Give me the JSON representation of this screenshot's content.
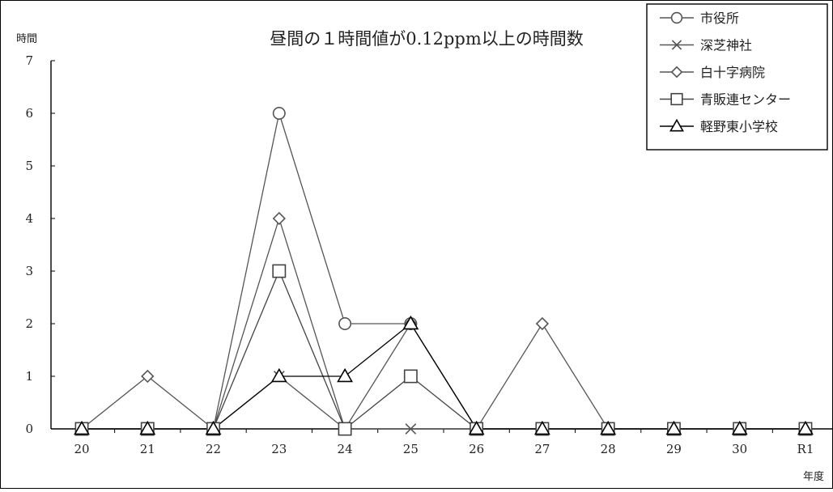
{
  "chart_data": {
    "type": "line",
    "title": "昼間の１時間値が0.12ppm以上の時間数",
    "ylabel": "時間",
    "xlabel": "年度",
    "categories": [
      "20",
      "21",
      "22",
      "23",
      "24",
      "25",
      "26",
      "27",
      "28",
      "29",
      "30",
      "R1"
    ],
    "ylim": [
      0,
      7
    ],
    "yticks": [
      "0",
      "1",
      "2",
      "3",
      "4",
      "5",
      "6",
      "7"
    ],
    "grid": false,
    "legend_position": "top-right",
    "series": [
      {
        "name": "市役所",
        "marker": "circle",
        "color": "#555555",
        "values": [
          0,
          0,
          0,
          6,
          2,
          2,
          0,
          0,
          0,
          0,
          0,
          0
        ]
      },
      {
        "name": "深芝神社",
        "marker": "x",
        "color": "#555555",
        "values": [
          0,
          0,
          0,
          1,
          0,
          0,
          0,
          0,
          0,
          0,
          0,
          0
        ]
      },
      {
        "name": "白十字病院",
        "marker": "diamond",
        "color": "#555555",
        "values": [
          0,
          1,
          0,
          4,
          0,
          2,
          0,
          2,
          0,
          0,
          0,
          0
        ]
      },
      {
        "name": "青販連センター",
        "marker": "square",
        "color": "#444444",
        "values": [
          0,
          0,
          0,
          3,
          0,
          1,
          0,
          0,
          0,
          0,
          0,
          0
        ]
      },
      {
        "name": "軽野東小学校",
        "marker": "triangle",
        "color": "#000000",
        "values": [
          0,
          0,
          0,
          1,
          1,
          2,
          0,
          0,
          0,
          0,
          0,
          0
        ]
      }
    ]
  }
}
